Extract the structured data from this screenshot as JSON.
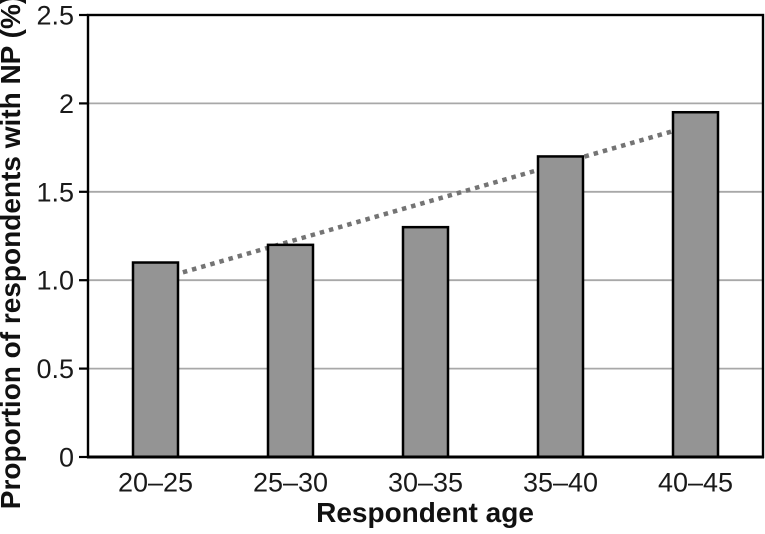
{
  "chart_data": {
    "type": "bar",
    "title": "",
    "categories": [
      "20–25",
      "25–30",
      "30–35",
      "35–40",
      "40–45"
    ],
    "values": [
      1.1,
      1.2,
      1.3,
      1.7,
      1.95
    ],
    "series": [
      {
        "name": "Proportion of respondents with NP",
        "values": [
          1.1,
          1.2,
          1.3,
          1.7,
          1.95
        ]
      }
    ],
    "xlabel": "Respondent age",
    "ylabel": "Proportion of respondents with NP (%)",
    "ylim": [
      0,
      2.5
    ],
    "yticks": [
      {
        "value": 0,
        "label": "0"
      },
      {
        "value": 0.5,
        "label": "0.5"
      },
      {
        "value": 1,
        "label": "1.0"
      },
      {
        "value": 1.5,
        "label": "1.5"
      },
      {
        "value": 2,
        "label": "2"
      },
      {
        "value": 2.5,
        "label": "2.5"
      }
    ],
    "grid": true,
    "legend_position": "none",
    "trendline": {
      "style": "dotted",
      "start_value": 1.0,
      "end_value": 1.88
    },
    "colors": {
      "bar_fill": "#949494",
      "bar_border": "#000000",
      "gridline": "#a8a8a8",
      "trendline": "#747474",
      "axis": "#000000",
      "text": "#1a1a1a",
      "background": "#ffffff"
    }
  }
}
